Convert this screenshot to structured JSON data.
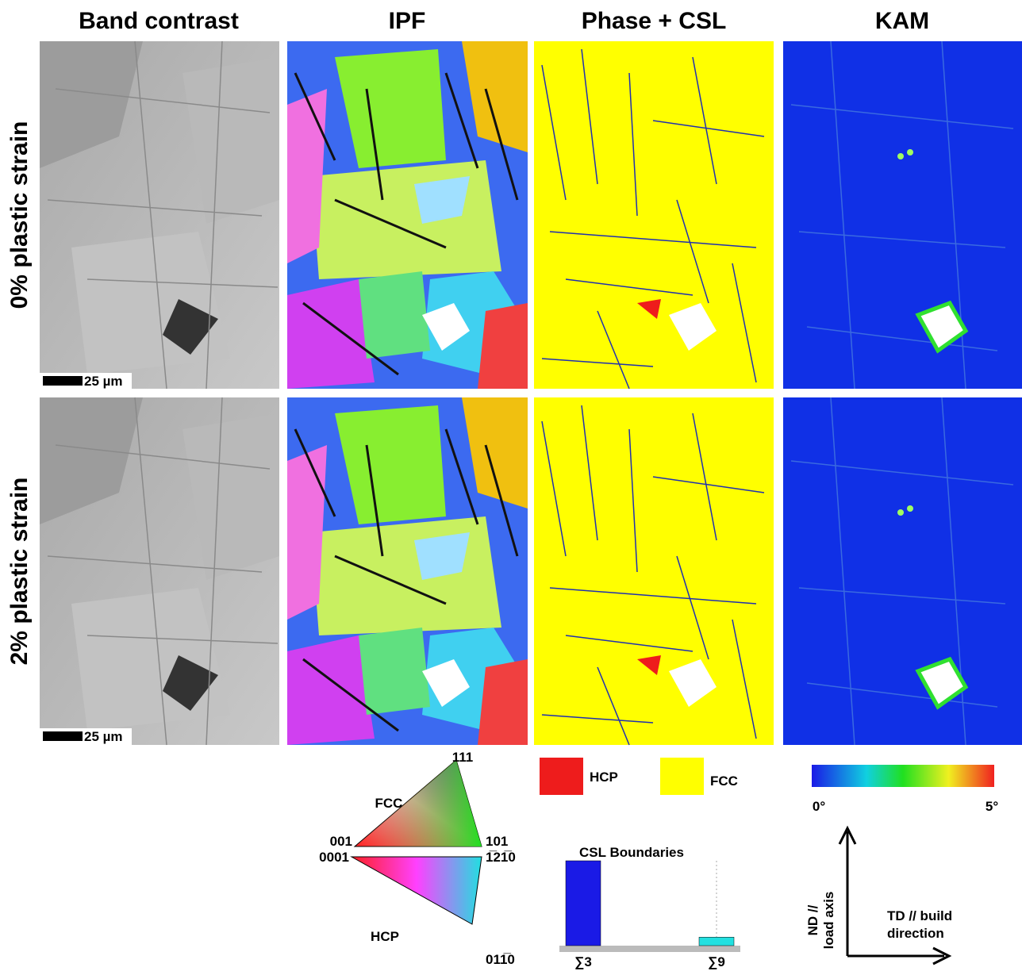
{
  "columns": [
    "Band contrast",
    "IPF",
    "Phase + CSL",
    "KAM"
  ],
  "rows": [
    "0% plastic strain",
    "2% plastic strain"
  ],
  "scale_bars": [
    "25 µm",
    "25 µm"
  ],
  "ipf_key": {
    "fcc": {
      "label": "FCC",
      "top": "111",
      "left": "001",
      "right": "101"
    },
    "hcp": {
      "label": "HCP",
      "left": "0001",
      "right": "1̅21̅0",
      "bottom": "011̅0"
    }
  },
  "phase_legend": [
    {
      "label": "HCP",
      "color": "#ee1c1c"
    },
    {
      "label": "FCC",
      "color": "#ffff00"
    }
  ],
  "csl_chart": {
    "title": "CSL Boundaries",
    "categories": [
      "∑3",
      "∑9"
    ],
    "values": [
      100,
      10
    ],
    "colors": [
      "#1a1ae6",
      "#22e0e0"
    ]
  },
  "kam_colorbar": {
    "min_label": "0°",
    "max_label": "5°"
  },
  "axes_key": {
    "vertical": [
      "ND //",
      "load axis"
    ],
    "horizontal": [
      "TD // build",
      "direction"
    ]
  }
}
